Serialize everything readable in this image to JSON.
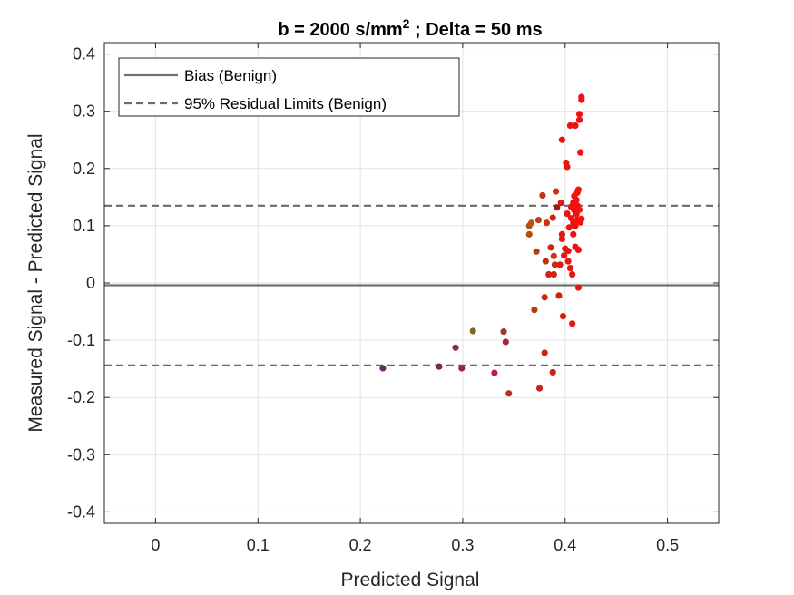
{
  "chart_data": {
    "type": "scatter",
    "title": {
      "prefix": "b = 2000 s/mm",
      "superscript": "2",
      "suffix": " ; Delta = 50 ms"
    },
    "xlabel": "Predicted Signal",
    "ylabel": "Measured Signal - Predicted Signal",
    "xlim": [
      -0.05,
      0.55
    ],
    "ylim": [
      -0.42,
      0.42
    ],
    "xticks": [
      0,
      0.1,
      0.2,
      0.3,
      0.4,
      0.5
    ],
    "xtick_labels": [
      "0",
      "0.1",
      "0.2",
      "0.3",
      "0.4",
      "0.5"
    ],
    "yticks": [
      0.4,
      0.3,
      0.2,
      0.1,
      0,
      -0.1,
      -0.2,
      -0.3,
      -0.4
    ],
    "ytick_labels": [
      "0.4",
      "0.3",
      "0.2",
      "0.1",
      "0",
      "-0.1",
      "-0.2",
      "-0.3",
      "-0.4"
    ],
    "grid": true,
    "legend_position": "top-left",
    "reference_lines": [
      {
        "name": "Bias (Benign)",
        "y": -0.004,
        "style": "solid",
        "color": "#707070"
      },
      {
        "name": "95% Residual Limits (Benign)",
        "y": 0.135,
        "style": "dashed",
        "color": "#6a6a6a"
      },
      {
        "name": "95% Residual Limits (Benign)",
        "y": -0.144,
        "style": "dashed",
        "color": "#6a6a6a"
      }
    ],
    "legend": [
      {
        "label": "Bias (Benign)",
        "style": "solid",
        "color": "#707070"
      },
      {
        "label": "95% Residual Limits (Benign)",
        "style": "dashed",
        "color": "#6a6a6a"
      }
    ],
    "points": [
      {
        "x": 0.222,
        "y": -0.149,
        "color": "#6b2a6b"
      },
      {
        "x": 0.277,
        "y": -0.146,
        "color": "#7a2a4a"
      },
      {
        "x": 0.293,
        "y": -0.113,
        "color": "#8a2a5a"
      },
      {
        "x": 0.299,
        "y": -0.149,
        "color": "#9a2050"
      },
      {
        "x": 0.31,
        "y": -0.084,
        "color": "#7a6a20"
      },
      {
        "x": 0.331,
        "y": -0.157,
        "color": "#c02040"
      },
      {
        "x": 0.34,
        "y": -0.085,
        "color": "#9a3a30"
      },
      {
        "x": 0.342,
        "y": -0.103,
        "color": "#b02035"
      },
      {
        "x": 0.345,
        "y": -0.193,
        "color": "#c03025"
      },
      {
        "x": 0.365,
        "y": 0.1,
        "color": "#b05015"
      },
      {
        "x": 0.365,
        "y": 0.085,
        "color": "#b05010"
      },
      {
        "x": 0.367,
        "y": 0.105,
        "color": "#c05010"
      },
      {
        "x": 0.37,
        "y": -0.047,
        "color": "#b04010"
      },
      {
        "x": 0.372,
        "y": 0.055,
        "color": "#b04010"
      },
      {
        "x": 0.374,
        "y": 0.11,
        "color": "#c04010"
      },
      {
        "x": 0.375,
        "y": -0.184,
        "color": "#d02020"
      },
      {
        "x": 0.378,
        "y": 0.153,
        "color": "#c03510"
      },
      {
        "x": 0.38,
        "y": -0.122,
        "color": "#d02010"
      },
      {
        "x": 0.38,
        "y": -0.025,
        "color": "#c03010"
      },
      {
        "x": 0.381,
        "y": 0.038,
        "color": "#c03010"
      },
      {
        "x": 0.382,
        "y": 0.105,
        "color": "#d03010"
      },
      {
        "x": 0.384,
        "y": 0.015,
        "color": "#d02510"
      },
      {
        "x": 0.386,
        "y": 0.062,
        "color": "#d02510"
      },
      {
        "x": 0.388,
        "y": -0.156,
        "color": "#d02010"
      },
      {
        "x": 0.388,
        "y": 0.114,
        "color": "#d02510"
      },
      {
        "x": 0.389,
        "y": 0.015,
        "color": "#d02510"
      },
      {
        "x": 0.389,
        "y": 0.047,
        "color": "#d03010"
      },
      {
        "x": 0.39,
        "y": 0.032,
        "color": "#d02510"
      },
      {
        "x": 0.391,
        "y": 0.16,
        "color": "#d03010"
      },
      {
        "x": 0.392,
        "y": 0.132,
        "color": "#a01820"
      },
      {
        "x": 0.394,
        "y": -0.022,
        "color": "#d02010"
      },
      {
        "x": 0.395,
        "y": 0.032,
        "color": "#e01a10"
      },
      {
        "x": 0.396,
        "y": 0.14,
        "color": "#e01a10"
      },
      {
        "x": 0.397,
        "y": 0.25,
        "color": "#e81010"
      },
      {
        "x": 0.397,
        "y": 0.085,
        "color": "#e01a10"
      },
      {
        "x": 0.397,
        "y": 0.077,
        "color": "#e01a10"
      },
      {
        "x": 0.398,
        "y": -0.058,
        "color": "#e01a10"
      },
      {
        "x": 0.399,
        "y": 0.048,
        "color": "#e01a10"
      },
      {
        "x": 0.4,
        "y": 0.06,
        "color": "#e81510"
      },
      {
        "x": 0.401,
        "y": 0.21,
        "color": "#e81510"
      },
      {
        "x": 0.402,
        "y": 0.203,
        "color": "#e81510"
      },
      {
        "x": 0.402,
        "y": 0.121,
        "color": "#e81510"
      },
      {
        "x": 0.403,
        "y": 0.038,
        "color": "#e81510"
      },
      {
        "x": 0.403,
        "y": 0.056,
        "color": "#e81510"
      },
      {
        "x": 0.404,
        "y": 0.097,
        "color": "#e81510"
      },
      {
        "x": 0.405,
        "y": 0.026,
        "color": "#e81510"
      },
      {
        "x": 0.405,
        "y": 0.275,
        "color": "#f01010"
      },
      {
        "x": 0.406,
        "y": 0.133,
        "color": "#e81510"
      },
      {
        "x": 0.406,
        "y": 0.113,
        "color": "#e81510"
      },
      {
        "x": 0.407,
        "y": -0.071,
        "color": "#e81510"
      },
      {
        "x": 0.407,
        "y": 0.015,
        "color": "#e81510"
      },
      {
        "x": 0.408,
        "y": 0.14,
        "color": "#f01010"
      },
      {
        "x": 0.408,
        "y": 0.105,
        "color": "#f01010"
      },
      {
        "x": 0.408,
        "y": 0.085,
        "color": "#f01010"
      },
      {
        "x": 0.409,
        "y": 0.152,
        "color": "#f01010"
      },
      {
        "x": 0.409,
        "y": 0.127,
        "color": "#f01010"
      },
      {
        "x": 0.41,
        "y": 0.275,
        "color": "#f01010"
      },
      {
        "x": 0.41,
        "y": 0.1,
        "color": "#f01010"
      },
      {
        "x": 0.41,
        "y": 0.063,
        "color": "#f01010"
      },
      {
        "x": 0.411,
        "y": 0.145,
        "color": "#f01010"
      },
      {
        "x": 0.411,
        "y": 0.12,
        "color": "#f01010"
      },
      {
        "x": 0.412,
        "y": 0.158,
        "color": "#f51010"
      },
      {
        "x": 0.412,
        "y": 0.135,
        "color": "#f51010"
      },
      {
        "x": 0.412,
        "y": 0.11,
        "color": "#f51010"
      },
      {
        "x": 0.413,
        "y": 0.163,
        "color": "#f51010"
      },
      {
        "x": 0.413,
        "y": 0.058,
        "color": "#f51010"
      },
      {
        "x": 0.413,
        "y": -0.008,
        "color": "#f51010"
      },
      {
        "x": 0.414,
        "y": 0.285,
        "color": "#f51010"
      },
      {
        "x": 0.414,
        "y": 0.295,
        "color": "#f51010"
      },
      {
        "x": 0.414,
        "y": 0.128,
        "color": "#f51010"
      },
      {
        "x": 0.415,
        "y": 0.228,
        "color": "#f51010"
      },
      {
        "x": 0.415,
        "y": 0.106,
        "color": "#f51010"
      },
      {
        "x": 0.416,
        "y": 0.325,
        "color": "#f51010"
      },
      {
        "x": 0.416,
        "y": 0.32,
        "color": "#f51010"
      },
      {
        "x": 0.416,
        "y": 0.112,
        "color": "#f51010"
      }
    ]
  }
}
